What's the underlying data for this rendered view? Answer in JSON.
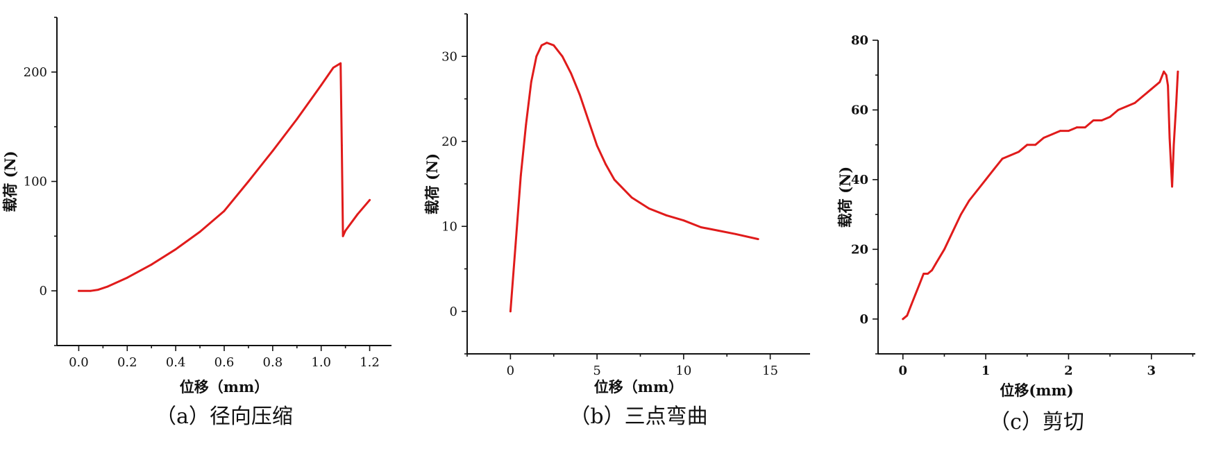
{
  "colors": {
    "series": "#e01b1b",
    "axis": "#111111"
  },
  "chart_data": [
    {
      "type": "line",
      "caption": "（a）径向压缩",
      "xlabel": "位移（mm）",
      "ylabel": "载荷 (N)",
      "xlim": [
        -0.09,
        1.29
      ],
      "ylim": [
        -50,
        250
      ],
      "xticks": [
        0.0,
        0.2,
        0.4,
        0.6,
        0.8,
        1.0,
        1.2
      ],
      "xtick_labels": [
        "0.0",
        "0.2",
        "0.4",
        "0.6",
        "0.8",
        "1.0",
        "1.2"
      ],
      "yticks": [
        0,
        100,
        200
      ],
      "ytick_labels": [
        "0",
        "100",
        "200"
      ],
      "grid": false,
      "series": [
        {
          "x": [
            0,
            0.05,
            0.08,
            0.12,
            0.2,
            0.3,
            0.4,
            0.5,
            0.6,
            0.7,
            0.8,
            0.9,
            1.0,
            1.05,
            1.08,
            1.085,
            1.09,
            1.1,
            1.15,
            1.2
          ],
          "y": [
            0,
            0,
            1,
            4,
            12,
            24,
            38,
            54,
            73,
            100,
            128,
            157,
            188,
            204,
            208,
            133,
            50,
            55,
            70,
            83
          ]
        }
      ]
    },
    {
      "type": "line",
      "caption": "（b）三点弯曲",
      "xlabel": "位移（mm）",
      "ylabel": "载荷 (N)",
      "xlim": [
        -2.5,
        17.3
      ],
      "ylim": [
        -5,
        35
      ],
      "xticks": [
        0,
        5,
        10,
        15
      ],
      "xtick_labels": [
        "0",
        "5",
        "10",
        "15"
      ],
      "yticks": [
        0,
        10,
        20,
        30
      ],
      "ytick_labels": [
        "0",
        "10",
        "20",
        "30"
      ],
      "grid": false,
      "series": [
        {
          "x": [
            0,
            0.3,
            0.6,
            0.9,
            1.2,
            1.5,
            1.8,
            2.1,
            2.5,
            3.0,
            3.5,
            4.0,
            4.5,
            5.0,
            5.5,
            6.0,
            7.0,
            8.0,
            9.0,
            10.0,
            11.0,
            12.0,
            13.0,
            14.3
          ],
          "y": [
            0,
            8,
            16,
            22,
            27,
            30,
            31.3,
            31.6,
            31.3,
            30,
            28,
            25.5,
            22.5,
            19.5,
            17.3,
            15.5,
            13.4,
            12.1,
            11.3,
            10.7,
            9.9,
            9.5,
            9.1,
            8.5
          ]
        }
      ]
    },
    {
      "type": "line",
      "caption": "（c）剪切",
      "xlabel": "位移(mm)",
      "ylabel": "载荷 (N)",
      "xlim": [
        -0.3,
        3.53
      ],
      "ylim": [
        -10,
        80
      ],
      "xticks": [
        0,
        1,
        2,
        3
      ],
      "xtick_labels": [
        "0",
        "1",
        "2",
        "3"
      ],
      "yticks": [
        0,
        20,
        40,
        60,
        80
      ],
      "ytick_labels": [
        "0",
        "20",
        "40",
        "60",
        "80"
      ],
      "grid": false,
      "series": [
        {
          "x": [
            0,
            0.05,
            0.1,
            0.15,
            0.2,
            0.25,
            0.3,
            0.35,
            0.4,
            0.5,
            0.6,
            0.7,
            0.8,
            0.9,
            1.0,
            1.1,
            1.2,
            1.3,
            1.4,
            1.5,
            1.6,
            1.7,
            1.8,
            1.9,
            2.0,
            2.1,
            2.2,
            2.3,
            2.4,
            2.5,
            2.6,
            2.7,
            2.8,
            2.9,
            3.0,
            3.1,
            3.15,
            3.18,
            3.2,
            3.22,
            3.25,
            3.27,
            3.3,
            3.32
          ],
          "y": [
            0,
            1,
            4,
            7,
            10,
            13,
            13,
            14,
            16,
            20,
            25,
            30,
            34,
            37,
            40,
            43,
            46,
            47,
            48,
            50,
            50,
            52,
            53,
            54,
            54,
            55,
            55,
            57,
            57,
            58,
            60,
            61,
            62,
            64,
            66,
            68,
            71,
            70,
            67,
            52,
            38,
            50,
            62,
            71
          ]
        }
      ]
    }
  ]
}
